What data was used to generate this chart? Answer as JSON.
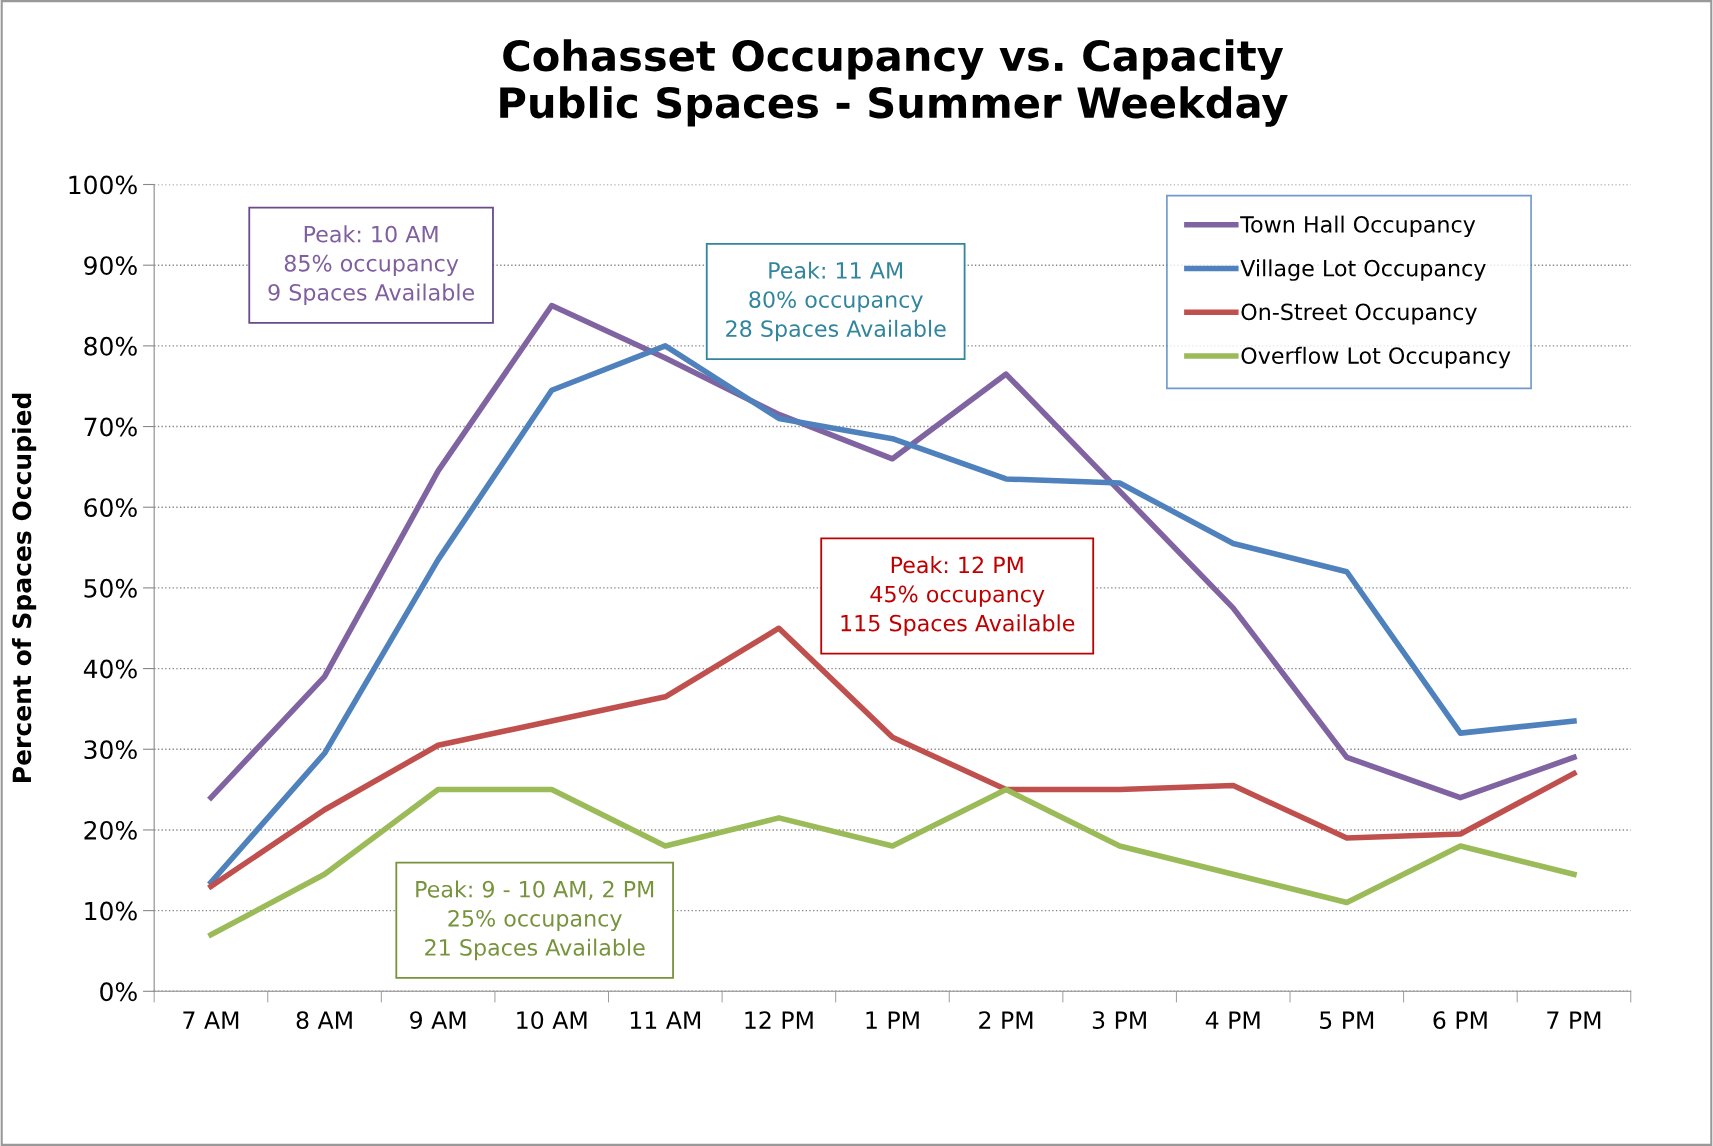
{
  "chart_data": {
    "type": "line",
    "title": "Cohasset Occupancy vs. Capacity\nPublic Spaces - Summer Weekday",
    "ylabel": "Percent of Spaces Occupied",
    "categories": [
      "7 AM",
      "8 AM",
      "9 AM",
      "10 AM",
      "11 AM",
      "12 PM",
      "1 PM",
      "2 PM",
      "3 PM",
      "4 PM",
      "5 PM",
      "6 PM",
      "7 PM"
    ],
    "series": [
      {
        "name": "Town Hall Occupancy",
        "color": "#8064a2",
        "values": [
          24,
          39,
          64.5,
          85,
          78.5,
          71.5,
          66,
          76.5,
          62,
          47.5,
          29,
          24,
          29
        ]
      },
      {
        "name": "Village Lot Occupancy",
        "color": "#4f81bd",
        "values": [
          13.5,
          29.5,
          53.5,
          74.5,
          80,
          71,
          68.5,
          63.5,
          63,
          55.5,
          52,
          32,
          33.5
        ]
      },
      {
        "name": "On-Street Occupancy",
        "color": "#c0504d",
        "values": [
          13,
          22.5,
          30.5,
          33.5,
          36.5,
          45,
          31.5,
          25,
          25,
          25.5,
          19,
          19.5,
          27
        ]
      },
      {
        "name": "Overflow Lot Occupancy",
        "color": "#9bbb59",
        "values": [
          7,
          14.5,
          25,
          25,
          18,
          21.5,
          18,
          25,
          18,
          14.5,
          11,
          18,
          14.5
        ]
      }
    ],
    "ylim": [
      0,
      100
    ],
    "yticks": [
      {
        "value": 0,
        "label": "0%"
      },
      {
        "value": 10,
        "label": "10%"
      },
      {
        "value": 20,
        "label": "20%"
      },
      {
        "value": 30,
        "label": "30%"
      },
      {
        "value": 40,
        "label": "40%"
      },
      {
        "value": 50,
        "label": "50%"
      },
      {
        "value": 60,
        "label": "60%"
      },
      {
        "value": 70,
        "label": "70%"
      },
      {
        "value": 80,
        "label": "80%"
      },
      {
        "value": 90,
        "label": "90%"
      },
      {
        "value": 100,
        "label": "100%"
      }
    ],
    "grid": "y",
    "legend": "top right",
    "marker": "none",
    "line_style": "solid",
    "annotations": [
      "Peak: 10 AM\n85% occupancy\n9 Spaces Available",
      "Peak: 11 AM\n80% occupancy\n28 Spaces Available",
      "Peak: 12 PM\n45% occupancy\n115 Spaces Available",
      "Peak: 9 - 10 AM, 2 PM\n25% occupancy\n21 Spaces Available"
    ]
  }
}
